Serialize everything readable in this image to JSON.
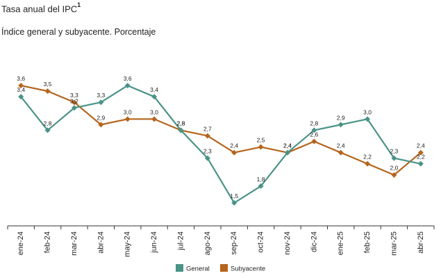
{
  "chart_data": {
    "type": "line",
    "title": "Tasa anual del IPC",
    "title_superscript": "1",
    "subtitle": "Índice general y subyacente. Porcentaje",
    "categories": [
      "ene-24",
      "feb-24",
      "mar-24",
      "abr-24",
      "may-24",
      "jun-24",
      "jul-24",
      "ago-24",
      "sep-24",
      "oct-24",
      "nov-24",
      "dic-24",
      "ene-25",
      "feb-25",
      "mar-25",
      "abr-25"
    ],
    "series": [
      {
        "name": "General",
        "color": "#4a9388",
        "marker": "diamond",
        "values": [
          3.4,
          2.8,
          3.2,
          3.3,
          3.6,
          3.4,
          2.8,
          2.3,
          1.5,
          1.8,
          2.4,
          2.8,
          2.9,
          3.0,
          2.3,
          2.2
        ],
        "labels": [
          "3,4",
          "2,8",
          "3,2",
          "3,3",
          "3,6",
          "3,4",
          "2,8",
          "2,3",
          "1,5",
          "1,8",
          "2,4",
          "2,8",
          "2,9",
          "3,0",
          "2,3",
          "2,2"
        ]
      },
      {
        "name": "Subyacente",
        "color": "#b5651d",
        "marker": "diamond",
        "values": [
          3.6,
          3.5,
          3.3,
          2.9,
          3.0,
          3.0,
          2.8,
          2.7,
          2.4,
          2.5,
          2.4,
          2.6,
          2.4,
          2.2,
          2.0,
          2.4
        ],
        "labels": [
          "3,6",
          "3,5",
          "3,3",
          "2,9",
          "3,0",
          "3,0",
          "2,8",
          "2,7",
          "2,4",
          "2,5",
          "2,4",
          "2,6",
          "2,4",
          "2,2",
          "2,0",
          "2,4"
        ]
      }
    ],
    "ylim": [
      1.3,
      3.85
    ],
    "grid": false,
    "legend_placement": "bottom-center"
  }
}
